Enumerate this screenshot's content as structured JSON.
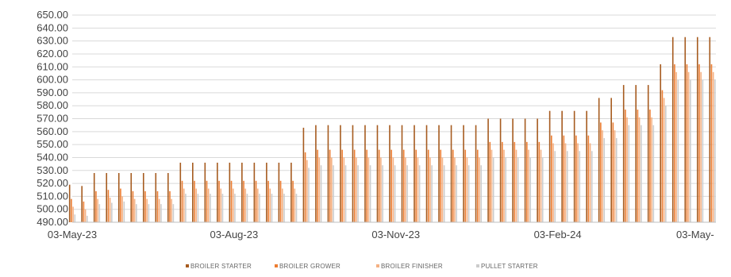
{
  "chart_data": {
    "type": "bar",
    "title": "",
    "xlabel": "",
    "ylabel": "",
    "ylim": [
      490,
      650
    ],
    "y_step": 10,
    "y_tick_format": "0.00",
    "x_range": [
      "2023-05-03",
      "2024-05-03"
    ],
    "x_tick_labels": [
      "03-May-23",
      "03-Aug-23",
      "03-Nov-23",
      "03-Feb-24",
      "03-May-"
    ],
    "x_tick_dates": [
      "2023-05-03",
      "2023-08-03",
      "2023-11-03",
      "2024-02-03",
      "2024-05-03"
    ],
    "grid": true,
    "legend_position": "bottom",
    "dates": [
      "2023-05-03",
      "2023-05-10",
      "2023-05-17",
      "2023-05-24",
      "2023-05-31",
      "2023-06-07",
      "2023-06-14",
      "2023-06-21",
      "2023-06-28",
      "2023-07-05",
      "2023-07-12",
      "2023-07-19",
      "2023-07-26",
      "2023-08-02",
      "2023-08-09",
      "2023-08-16",
      "2023-08-23",
      "2023-08-30",
      "2023-09-06",
      "2023-09-13",
      "2023-09-20",
      "2023-09-27",
      "2023-10-04",
      "2023-10-11",
      "2023-10-18",
      "2023-10-25",
      "2023-11-01",
      "2023-11-08",
      "2023-11-15",
      "2023-11-22",
      "2023-11-29",
      "2023-12-06",
      "2023-12-13",
      "2023-12-20",
      "2023-12-27",
      "2024-01-03",
      "2024-01-10",
      "2024-01-17",
      "2024-01-24",
      "2024-01-31",
      "2024-02-07",
      "2024-02-14",
      "2024-02-21",
      "2024-02-28",
      "2024-03-06",
      "2024-03-13",
      "2024-03-20",
      "2024-03-27",
      "2024-04-03",
      "2024-04-10",
      "2024-04-17",
      "2024-04-24",
      "2024-05-01"
    ],
    "series": [
      {
        "name": "BROILER STARTER",
        "color": "#a65b1f",
        "values": [
          519,
          518,
          528,
          528,
          528,
          528,
          528,
          528,
          528,
          536,
          536,
          536,
          536,
          536,
          536,
          536,
          536,
          536,
          536,
          563,
          565,
          565,
          565,
          565,
          565,
          565,
          565,
          565,
          565,
          565,
          565,
          565,
          565,
          565,
          570,
          570,
          570,
          570,
          570,
          576,
          576,
          576,
          576,
          586,
          586,
          596,
          596,
          596,
          612,
          633,
          633,
          633,
          633
        ]
      },
      {
        "name": "BROILER GROWER",
        "color": "#ed7d31",
        "values": [
          508,
          506,
          514,
          515,
          516,
          514,
          514,
          514,
          514,
          522,
          522,
          522,
          522,
          522,
          522,
          522,
          522,
          522,
          522,
          544,
          546,
          546,
          546,
          546,
          546,
          546,
          546,
          546,
          546,
          546,
          546,
          546,
          546,
          546,
          552,
          552,
          552,
          552,
          552,
          557,
          557,
          557,
          557,
          567,
          567,
          577,
          577,
          577,
          592,
          612,
          612,
          612,
          612
        ]
      },
      {
        "name": "BROILER FINISHER",
        "color": "#f4b183",
        "values": [
          502,
          500,
          508,
          509,
          510,
          508,
          508,
          508,
          508,
          516,
          516,
          516,
          516,
          516,
          516,
          516,
          516,
          516,
          516,
          538,
          540,
          540,
          540,
          540,
          540,
          540,
          540,
          540,
          540,
          540,
          540,
          540,
          540,
          540,
          546,
          546,
          546,
          546,
          546,
          551,
          551,
          551,
          551,
          561,
          561,
          571,
          571,
          571,
          586,
          606,
          606,
          606,
          606
        ]
      },
      {
        "name": "PULLET STARTER",
        "color": "#cccccc",
        "values": [
          496,
          495,
          504,
          505,
          506,
          504,
          504,
          504,
          504,
          512,
          512,
          512,
          512,
          512,
          512,
          512,
          512,
          512,
          512,
          532,
          534,
          534,
          534,
          534,
          534,
          534,
          534,
          534,
          534,
          534,
          534,
          534,
          534,
          534,
          540,
          540,
          540,
          540,
          540,
          545,
          545,
          545,
          545,
          555,
          555,
          565,
          565,
          565,
          580,
          600,
          600,
          600,
          600
        ]
      }
    ]
  }
}
